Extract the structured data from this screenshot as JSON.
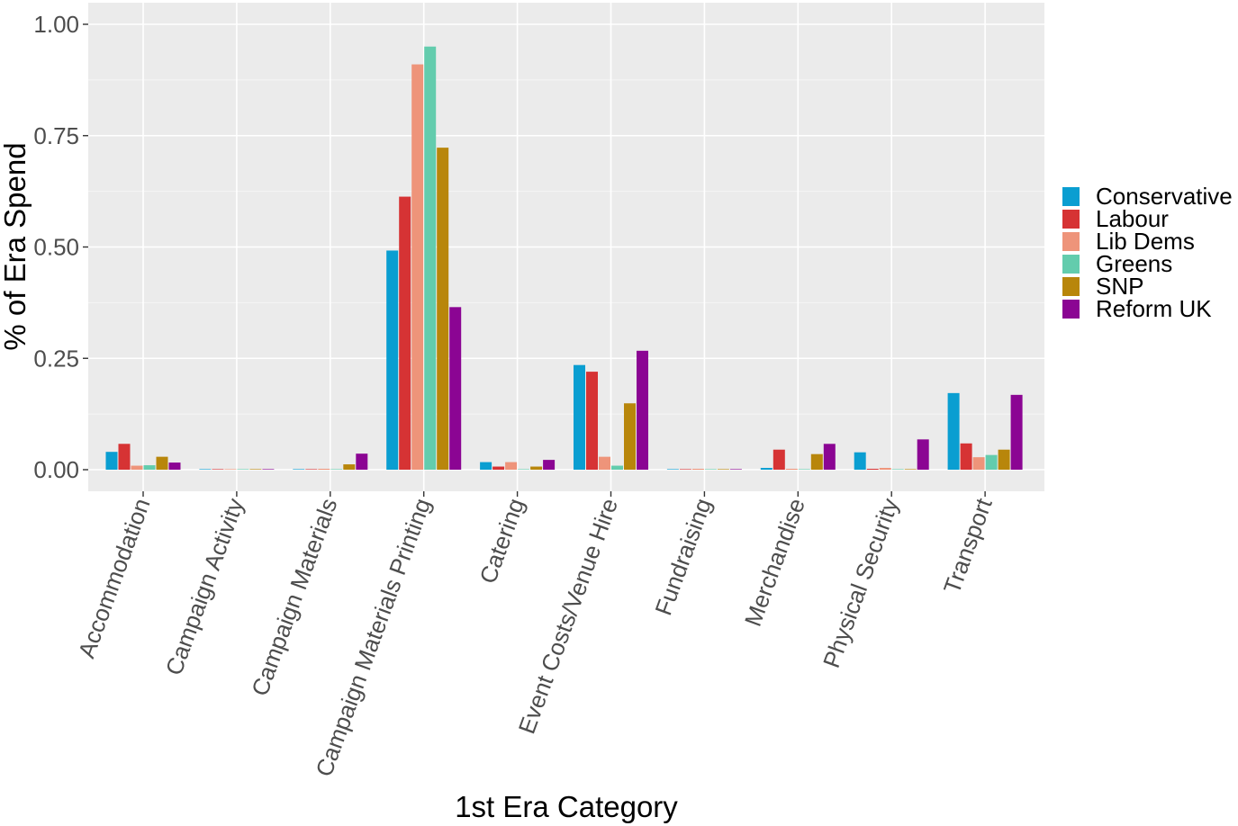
{
  "chart_data": {
    "type": "bar",
    "title": "",
    "xlabel": "1st Era Category",
    "ylabel": "% of Era Spend",
    "ylim": [
      -0.05,
      1.0
    ],
    "yticks": [
      0.0,
      0.25,
      0.5,
      0.75,
      1.0
    ],
    "ytick_labels": [
      "0.00",
      "0.25",
      "0.50",
      "0.75",
      "1.00"
    ],
    "grid": true,
    "legend_position": "right",
    "categories": [
      "Accommodation",
      "Campaign Activity",
      "Campaign Materials",
      "Campaign Materials Printing",
      "Catering",
      "Event Costs/Venue Hire",
      "Fundraising",
      "Merchandise",
      "Physical Security",
      "Transport"
    ],
    "series": [
      {
        "name": "Conservative",
        "color": "#0a9ed1",
        "values": [
          0.04,
          0.0,
          0.0,
          0.492,
          0.017,
          0.235,
          0.0,
          0.004,
          0.039,
          0.172
        ]
      },
      {
        "name": "Labour",
        "color": "#d63334",
        "values": [
          0.058,
          0.0,
          0.0,
          0.613,
          0.007,
          0.22,
          0.0,
          0.045,
          0.002,
          0.059
        ]
      },
      {
        "name": "Lib Dems",
        "color": "#ee947a",
        "values": [
          0.009,
          0.0,
          0.002,
          0.91,
          0.017,
          0.029,
          0.001,
          0.001,
          0.004,
          0.028
        ]
      },
      {
        "name": "Greens",
        "color": "#63ccad",
        "values": [
          0.01,
          0.0,
          0.0,
          0.95,
          0.0,
          0.009,
          0.0,
          0.0,
          0.0,
          0.033
        ]
      },
      {
        "name": "SNP",
        "color": "#b8860b",
        "values": [
          0.029,
          0.0,
          0.012,
          0.723,
          0.007,
          0.149,
          0.0,
          0.035,
          0.0,
          0.045
        ]
      },
      {
        "name": "Reform UK",
        "color": "#8b0593",
        "values": [
          0.016,
          0.0,
          0.036,
          0.365,
          0.022,
          0.267,
          0.0,
          0.058,
          0.068,
          0.168
        ]
      }
    ]
  }
}
